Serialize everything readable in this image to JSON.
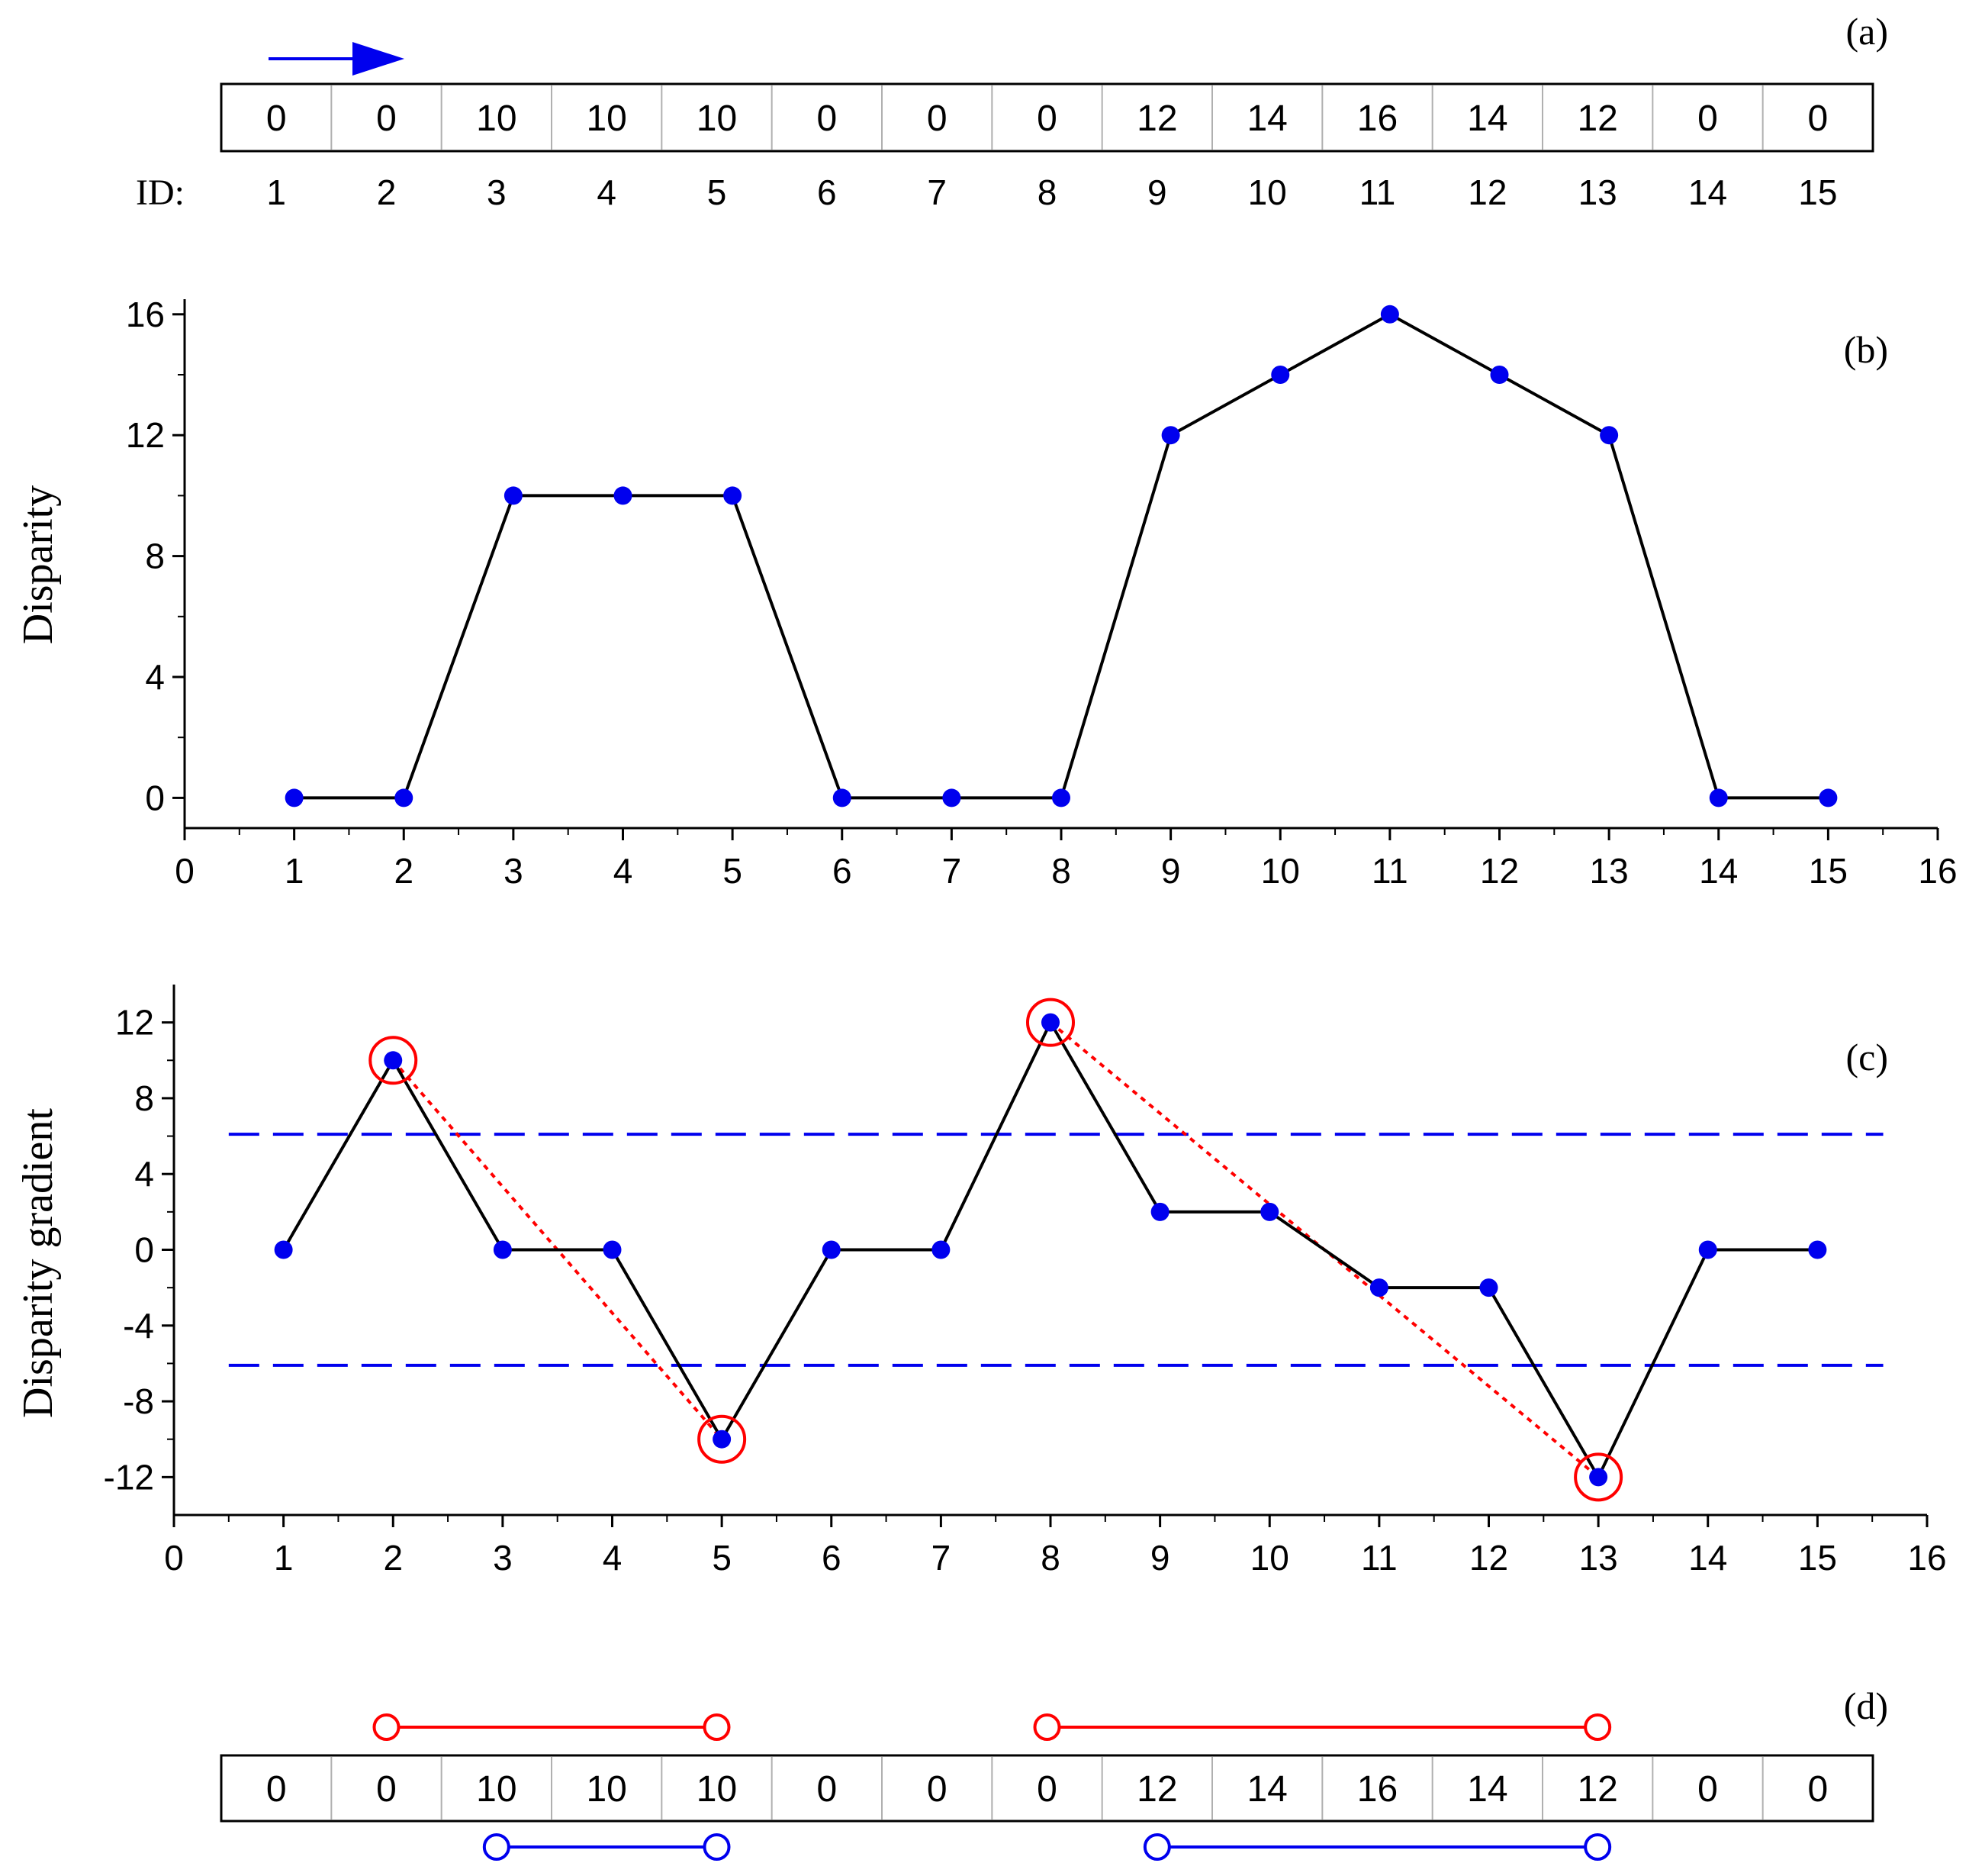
{
  "colors": {
    "marker": "#0000ee",
    "line": "#000000",
    "highlight": "#ff0000",
    "threshold": "#0000ee",
    "cell_border": "#000000",
    "cell_divider": "#b0b0b0"
  },
  "chart_data": [
    {
      "panel": "(a)",
      "type": "table",
      "title": "",
      "arrow": "right-arrow",
      "id_label": "ID:",
      "ids": [
        "1",
        "2",
        "3",
        "4",
        "5",
        "6",
        "7",
        "8",
        "9",
        "10",
        "11",
        "12",
        "13",
        "14",
        "15"
      ],
      "values": [
        "0",
        "0",
        "10",
        "10",
        "10",
        "0",
        "0",
        "0",
        "12",
        "14",
        "16",
        "14",
        "12",
        "0",
        "0"
      ]
    },
    {
      "panel": "(b)",
      "type": "line",
      "title": "",
      "xlabel": "",
      "ylabel": "Disparity",
      "xlim": [
        0,
        16
      ],
      "ylim": [
        -1,
        16.5
      ],
      "xticks": [
        0,
        1,
        2,
        3,
        4,
        5,
        6,
        7,
        8,
        9,
        10,
        11,
        12,
        13,
        14,
        15,
        16
      ],
      "yticks": [
        0,
        4,
        8,
        12,
        16
      ],
      "x": [
        1,
        2,
        3,
        4,
        5,
        6,
        7,
        8,
        9,
        10,
        11,
        12,
        13,
        14,
        15
      ],
      "y": [
        0,
        0,
        10,
        10,
        10,
        0,
        0,
        0,
        12,
        14,
        16,
        14,
        12,
        0,
        0
      ]
    },
    {
      "panel": "(c)",
      "type": "line",
      "title": "",
      "xlabel": "",
      "ylabel": "Disparity gradient",
      "xlim": [
        0,
        16
      ],
      "ylim": [
        -14,
        14
      ],
      "xticks": [
        0,
        1,
        2,
        3,
        4,
        5,
        6,
        7,
        8,
        9,
        10,
        11,
        12,
        13,
        14,
        15,
        16
      ],
      "yticks": [
        -12,
        -8,
        -4,
        0,
        4,
        8,
        12
      ],
      "x": [
        1,
        2,
        3,
        4,
        5,
        6,
        7,
        8,
        9,
        10,
        11,
        12,
        13,
        14,
        15
      ],
      "y": [
        0,
        10,
        0,
        0,
        -10,
        0,
        0,
        12,
        2,
        2,
        -2,
        -2,
        -12,
        0,
        0
      ],
      "thresholds": [
        6.1,
        -6.1
      ],
      "threshold_x_range": [
        0.5,
        15.6
      ],
      "highlighted_points": [
        [
          2,
          10
        ],
        [
          5,
          -10
        ],
        [
          8,
          12
        ],
        [
          13,
          -12
        ]
      ],
      "dotted_pairs": [
        [
          [
            2,
            10
          ],
          [
            5,
            -10
          ]
        ],
        [
          [
            8,
            12
          ],
          [
            13,
            -12
          ]
        ]
      ]
    },
    {
      "panel": "(d)",
      "type": "table",
      "title": "",
      "values": [
        "0",
        "0",
        "10",
        "10",
        "10",
        "0",
        "0",
        "0",
        "12",
        "14",
        "16",
        "14",
        "12",
        "0",
        "0"
      ],
      "red_intervals": [
        [
          2,
          5
        ],
        [
          8,
          13
        ]
      ],
      "blue_intervals": [
        [
          3,
          5
        ],
        [
          9,
          13
        ]
      ]
    }
  ]
}
